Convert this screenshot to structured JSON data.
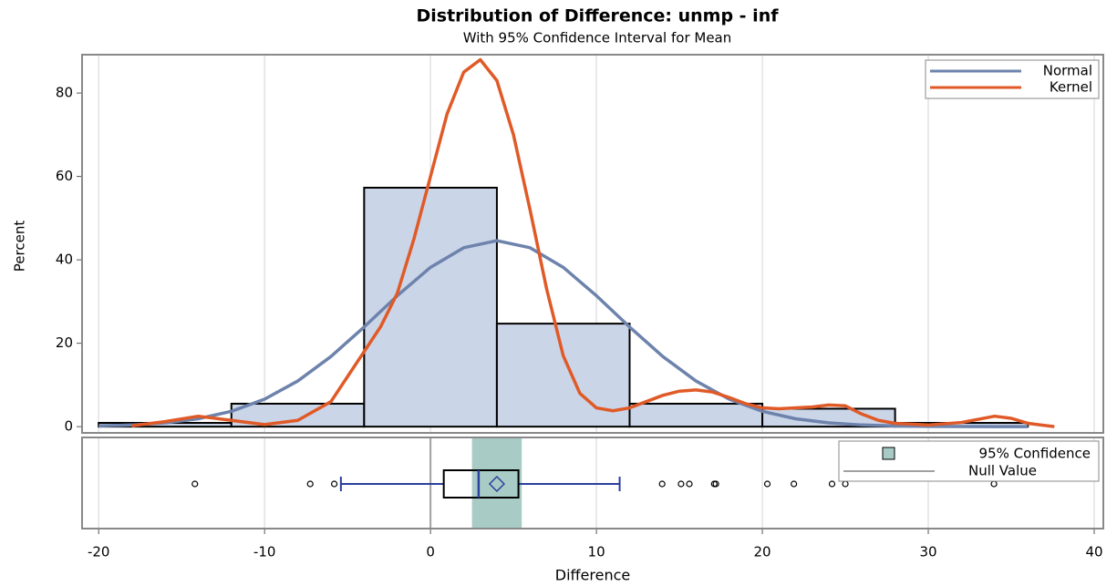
{
  "chart_data": {
    "type": "histogram",
    "title": "Distribution of Difference: unmp - inf",
    "subtitle": "With 95% Confidence Interval for Mean",
    "y_label": "Percent",
    "x_label": "Difference",
    "bins": [
      -20,
      -12,
      -4,
      4,
      12,
      20,
      28,
      36
    ],
    "values": [
      0.9,
      5.5,
      57.3,
      24.7,
      5.5,
      4.3,
      0.9
    ],
    "color": "#cbd5e8",
    "series": [
      {
        "name": "Normal",
        "color": "#6d83ac",
        "x": [
          -20,
          -18,
          -16,
          -14,
          -12,
          -10,
          -8,
          -6,
          -4,
          -2,
          0,
          2,
          4,
          6,
          8,
          10,
          12,
          14,
          16,
          18,
          20,
          22,
          24,
          26,
          28,
          30,
          32,
          34,
          36
        ],
        "values": [
          0.16,
          0.4,
          0.9,
          1.89,
          3.67,
          6.59,
          10.95,
          16.82,
          23.9,
          31.4,
          38.2,
          42.9,
          44.6,
          42.9,
          38.2,
          31.4,
          23.9,
          16.82,
          10.95,
          6.59,
          3.67,
          1.89,
          0.9,
          0.4,
          0.16,
          0.06,
          0.02,
          0.01,
          0
        ]
      },
      {
        "name": "Kernel",
        "color": "#e05a27",
        "x": [
          -18,
          -16,
          -14,
          -12,
          -10,
          -8,
          -6,
          -5,
          -4,
          -3,
          -2,
          -1,
          0,
          1,
          2,
          3,
          4,
          5,
          6,
          7,
          8,
          9,
          10,
          11,
          12,
          13,
          14,
          15,
          16,
          17,
          18,
          19,
          20,
          21,
          22,
          23,
          24,
          25,
          26,
          27,
          28,
          30,
          32,
          34,
          35,
          36,
          37.6
        ],
        "values": [
          0.2,
          1.2,
          2.5,
          1.5,
          0.5,
          1.5,
          6,
          12,
          18,
          24,
          32,
          45,
          60,
          75,
          85,
          88,
          83,
          70,
          52,
          33,
          17,
          8,
          4.5,
          3.8,
          4.5,
          6,
          7.5,
          8.5,
          8.8,
          8.3,
          7,
          5.5,
          4.5,
          4.3,
          4.5,
          4.7,
          5.2,
          5,
          3,
          1.5,
          0.8,
          0.4,
          1,
          2.5,
          2,
          0.8,
          0
        ]
      }
    ],
    "box": {
      "whisker_low": -5.4,
      "q1": 0.8,
      "median": 2.9,
      "q3": 5.3,
      "whisker_high": 11.4,
      "mean": 4.0,
      "color": "#2b3f9e",
      "outliers": [
        -14.2,
        -7.25,
        -5.8,
        13.96,
        15.1,
        15.6,
        17.1,
        17.2,
        20.3,
        21.9,
        24.2,
        25,
        33.96
      ]
    },
    "ci": {
      "name": "95% Confidence",
      "lower": 2.5,
      "upper": 5.5,
      "color": "#a8cbc6"
    },
    "null_value": {
      "name": "Null Value",
      "value": 0,
      "color": "#a0a0a0"
    },
    "xlim": [
      -21,
      40.55
    ],
    "xticks": [
      -20,
      -10,
      0,
      10,
      20,
      30,
      40
    ],
    "ylim": [
      -1.5,
      89.2
    ],
    "yticks": [
      0,
      20,
      40,
      60,
      80
    ],
    "grid": true,
    "legend": "top-right"
  }
}
